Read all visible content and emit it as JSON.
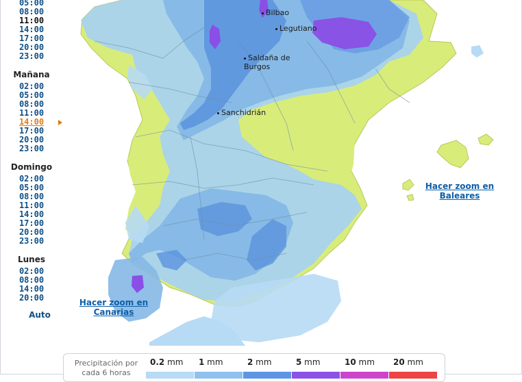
{
  "sidebar": {
    "days": [
      {
        "label": "",
        "times": [
          "05:00",
          "08:00",
          "11:00",
          "14:00",
          "17:00",
          "20:00",
          "23:00"
        ]
      },
      {
        "label": "Mañana",
        "times": [
          "02:00",
          "05:00",
          "08:00",
          "11:00",
          "14:00",
          "17:00",
          "20:00",
          "23:00"
        ]
      },
      {
        "label": "Domingo",
        "times": [
          "02:00",
          "05:00",
          "08:00",
          "11:00",
          "14:00",
          "17:00",
          "20:00",
          "23:00"
        ]
      },
      {
        "label": "Lunes",
        "times": [
          "02:00",
          "08:00",
          "14:00",
          "20:00"
        ]
      }
    ],
    "auto_label": "Auto",
    "selected": {
      "day": "Mañana",
      "time": "14:00"
    },
    "current": {
      "time": "11:00"
    }
  },
  "map": {
    "cities": [
      {
        "name": "Bilbao"
      },
      {
        "name": "Legutiano"
      },
      {
        "name": "Saldaña de Burgos"
      },
      {
        "name": "Sanchidrián"
      }
    ],
    "zoom_links": {
      "baleares": "Hacer zoom en Baleares",
      "canarias": "Hacer zoom en Canarias"
    },
    "colors": {
      "sea": "#ffffff",
      "land_dry": "#d8ec7a",
      "p02": "#a9d3ee",
      "p1": "#85b8e6",
      "p2": "#5b93dd",
      "p5": "#8a4fe6"
    }
  },
  "legend": {
    "title": "Precipitación por cada 6 horas",
    "items": [
      {
        "value": "0.2",
        "unit": "mm",
        "color": "#b7daf5"
      },
      {
        "value": "1",
        "unit": "mm",
        "color": "#8fc1ee"
      },
      {
        "value": "2",
        "unit": "mm",
        "color": "#5e95e4"
      },
      {
        "value": "5",
        "unit": "mm",
        "color": "#8a53e6"
      },
      {
        "value": "10",
        "unit": "mm",
        "color": "#cc44cc"
      },
      {
        "value": "20",
        "unit": "mm",
        "color": "#ee4444"
      }
    ]
  }
}
